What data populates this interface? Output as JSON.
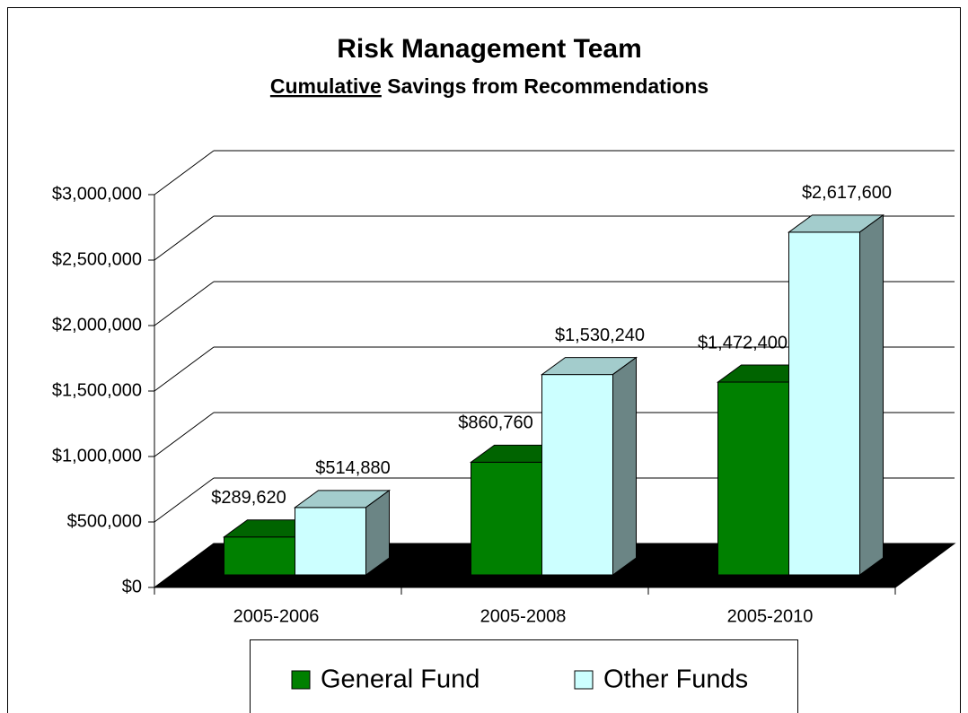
{
  "chart_data": {
    "type": "bar3d",
    "title": "Risk Management Team",
    "subtitle": [
      "Cumulative",
      "Savings from Recommendations"
    ],
    "categories": [
      "2005-2006",
      "2005-2008",
      "2005-2010"
    ],
    "series": [
      {
        "name": "General Fund",
        "color": "#008000",
        "values": [
          289620,
          860760,
          1472400
        ],
        "value_labels": [
          "$289,620",
          "$860,760",
          "$1,472,400"
        ]
      },
      {
        "name": "Other Funds",
        "color": "#ccffff",
        "values": [
          514880,
          1530240,
          2617600
        ],
        "value_labels": [
          "$514,880",
          "$1,530,240",
          "$2,617,600"
        ]
      }
    ],
    "ylim": [
      0,
      3000000
    ],
    "yticks": [
      {
        "value": 0,
        "label": "$0"
      },
      {
        "value": 500000,
        "label": "$500,000"
      },
      {
        "value": 1000000,
        "label": "$1,000,000"
      },
      {
        "value": 1500000,
        "label": "$1,500,000"
      },
      {
        "value": 2000000,
        "label": "$2,000,000"
      },
      {
        "value": 2500000,
        "label": "$2,500,000"
      },
      {
        "value": 3000000,
        "label": "$3,000,000"
      }
    ],
    "grid": true,
    "legend": "bottom"
  }
}
